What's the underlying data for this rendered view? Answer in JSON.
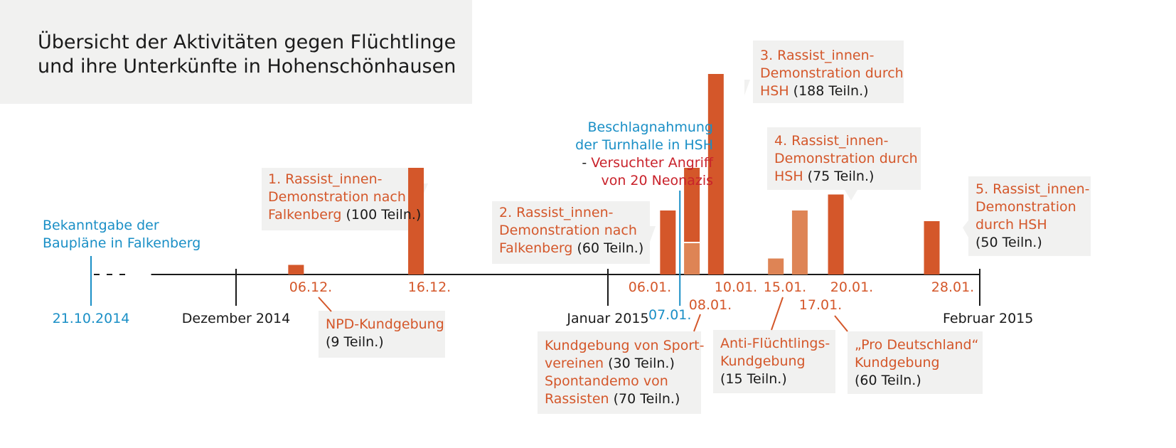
{
  "title_lines": [
    "Übersicht der Aktivitäten gegen Flüchtlinge",
    "und ihre Unterkünfte in Hohenschönhausen"
  ],
  "colors": {
    "primary": "#d4572a",
    "secondary": "#de8455",
    "blue": "#1a8fc6",
    "red": "#c9222b",
    "box": "#f1f1f0",
    "axis": "#1a1a1a"
  },
  "axis": {
    "start_label": "21.10.2014",
    "months": [
      {
        "label": "Dezember 2014",
        "date": "2014-12-01"
      },
      {
        "label": "Januar 2015",
        "date": "2015-01-01"
      },
      {
        "label": "Februar 2015",
        "date": "2015-02-01"
      }
    ]
  },
  "chart_data": {
    "type": "bar",
    "title": "Übersicht der Aktivitäten gegen Flüchtlinge und ihre Unterkünfte in Hohenschönhausen",
    "x_type": "date",
    "x_range": [
      "2014-10-21",
      "2015-02-01"
    ],
    "y_unit": "Teilnehmende",
    "legend": "none",
    "grid": false,
    "bars": [
      {
        "date": "2014-12-06",
        "tick": "06.12.",
        "value": 9
      },
      {
        "date": "2014-12-16",
        "tick": "16.12.",
        "value": 100
      },
      {
        "date": "2015-01-06",
        "tick": "06.01.",
        "value": 60
      },
      {
        "date": "2015-01-08",
        "tick": "08.01.",
        "value": 70,
        "stack": [
          30,
          70
        ]
      },
      {
        "date": "2015-01-10",
        "tick": "10.01.",
        "value": 188
      },
      {
        "date": "2015-01-15",
        "tick": "15.01.",
        "value": 15
      },
      {
        "date": "2015-01-17",
        "tick": "17.01.",
        "value": 60
      },
      {
        "date": "2015-01-20",
        "tick": "20.01.",
        "value": 75
      },
      {
        "date": "2015-01-28",
        "tick": "28.01.",
        "value": 50
      }
    ],
    "markers": [
      {
        "date": "2014-10-21",
        "label": "21.10.2014"
      },
      {
        "date": "2015-01-07",
        "label": "07.01."
      }
    ]
  },
  "annotations": [
    {
      "id": "bekanntgabe",
      "lines": [
        [
          [
            "Bekanntgabe der",
            "blu"
          ]
        ],
        [
          [
            "Baupläne in Falkenberg",
            "blu"
          ]
        ]
      ]
    },
    {
      "id": "rassist-1",
      "lines": [
        [
          [
            "1. Rassist_innen-",
            "ora"
          ]
        ],
        [
          [
            "Demonstration nach",
            "ora"
          ]
        ],
        [
          [
            "Falkenberg",
            "ora"
          ],
          [
            " (100 Teiln.)",
            "blk"
          ]
        ]
      ]
    },
    {
      "id": "npd",
      "lines": [
        [
          [
            "NPD-Kundgebung",
            "ora"
          ]
        ],
        [
          [
            "(9 Teiln.)",
            "blk"
          ]
        ]
      ]
    },
    {
      "id": "rassist-2",
      "lines": [
        [
          [
            "2. Rassist_innen-",
            "ora"
          ]
        ],
        [
          [
            "Demonstration nach",
            "ora"
          ]
        ],
        [
          [
            "Falkenberg",
            "ora"
          ],
          [
            " (60 Teiln.)",
            "blk"
          ]
        ]
      ]
    },
    {
      "id": "beschlagnahmung",
      "lines": [
        [
          [
            "Beschlagnahmung",
            "blu"
          ]
        ],
        [
          [
            "der Turnhalle in HSH",
            "blu"
          ]
        ],
        [
          [
            "- ",
            "blk"
          ],
          [
            "Versuchter Angriff",
            "red"
          ]
        ],
        [
          [
            "von 20 Neonazis",
            "red"
          ]
        ]
      ]
    },
    {
      "id": "rassist-3",
      "lines": [
        [
          [
            "3. Rassist_innen-",
            "ora"
          ]
        ],
        [
          [
            "Demonstration durch",
            "ora"
          ]
        ],
        [
          [
            "HSH",
            "ora"
          ],
          [
            " (188 Teiln.)",
            "blk"
          ]
        ]
      ]
    },
    {
      "id": "rassist-4",
      "lines": [
        [
          [
            "4. Rassist_innen-",
            "ora"
          ]
        ],
        [
          [
            "Demonstration durch",
            "ora"
          ]
        ],
        [
          [
            "HSH",
            "ora"
          ],
          [
            " (75 Teiln.)",
            "blk"
          ]
        ]
      ]
    },
    {
      "id": "rassist-5",
      "lines": [
        [
          [
            "5. Rassist_innen-",
            "ora"
          ]
        ],
        [
          [
            "Demonstration",
            "ora"
          ]
        ],
        [
          [
            "durch HSH",
            "ora"
          ]
        ],
        [
          [
            "(50 Teiln.)",
            "blk"
          ]
        ]
      ]
    },
    {
      "id": "sportvereine",
      "lines": [
        [
          [
            "Kundgebung von Sport-",
            "ora"
          ]
        ],
        [
          [
            "vereinen",
            "ora"
          ],
          [
            " (30 Teiln.)",
            "blk"
          ]
        ],
        [
          [
            "Spontandemo von",
            "ora"
          ]
        ],
        [
          [
            "Rassisten",
            "ora"
          ],
          [
            " (70 Teiln.)",
            "blk"
          ]
        ]
      ]
    },
    {
      "id": "anti-fluechtlings",
      "lines": [
        [
          [
            "Anti-Flüchtlings-",
            "ora"
          ]
        ],
        [
          [
            "Kundgebung",
            "ora"
          ]
        ],
        [
          [
            "(15 Teiln.)",
            "blk"
          ]
        ]
      ]
    },
    {
      "id": "pro-deutschland",
      "lines": [
        [
          [
            "„Pro Deutschland“",
            "ora"
          ]
        ],
        [
          [
            "Kundgebung",
            "ora"
          ]
        ],
        [
          [
            "(60 Teiln.)",
            "blk"
          ]
        ]
      ]
    }
  ]
}
